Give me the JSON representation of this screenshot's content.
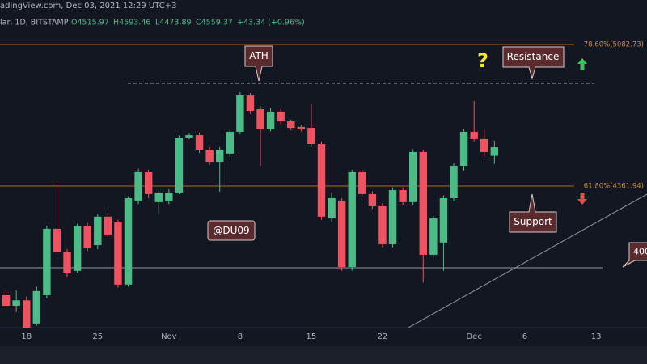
{
  "chart_data": {
    "type": "candlestick",
    "header": {
      "source": "adingView.com, Dec 03, 2021 12:29 UTC+3",
      "symbol": "lar, 1D, BITSTAMP",
      "open": "O4515.97",
      "high": "H4593.46",
      "low": "L4473.89",
      "close": "C4559.37",
      "change": "+43.34 (+0.96%)"
    },
    "x": [
      "Oct 16",
      "Oct 17",
      "Oct 18",
      "Oct 19",
      "Oct 20",
      "Oct 21",
      "Oct 22",
      "Oct 23",
      "Oct 24",
      "Oct 25",
      "Oct 26",
      "Oct 27",
      "Oct 28",
      "Oct 29",
      "Oct 30",
      "Oct 31",
      "Nov 1",
      "Nov 2",
      "Nov 3",
      "Nov 4",
      "Nov 5",
      "Nov 6",
      "Nov 7",
      "Nov 8",
      "Nov 9",
      "Nov 10",
      "Nov 11",
      "Nov 12",
      "Nov 13",
      "Nov 14",
      "Nov 15",
      "Nov 16",
      "Nov 17",
      "Nov 18",
      "Nov 19",
      "Nov 20",
      "Nov 21",
      "Nov 22",
      "Nov 23",
      "Nov 24",
      "Nov 25",
      "Nov 26",
      "Nov 27",
      "Nov 28",
      "Nov 29",
      "Nov 30",
      "Dec 1",
      "Dec 2",
      "Dec 3"
    ],
    "open": [
      3806,
      3752,
      3780,
      3662,
      3806,
      4144,
      4024,
      3930,
      4156,
      4061,
      4206,
      4177,
      3860,
      4288,
      4432,
      4280,
      4288,
      4329,
      4609,
      4621,
      4547,
      4485,
      4527,
      4638,
      4823,
      4753,
      4650,
      4741,
      4691,
      4663,
      4658,
      4576,
      4197,
      4288,
      3950,
      4432,
      4321,
      4259,
      4065,
      4341,
      4280,
      4535,
      4012,
      4074,
      4300,
      4465,
      4638,
      4601,
      4515.97
    ],
    "high": [
      3830,
      3830,
      3800,
      3850,
      4160,
      4383,
      4040,
      4170,
      4175,
      4220,
      4225,
      4190,
      4310,
      4450,
      4445,
      4340,
      4345,
      4620,
      4630,
      4635,
      4560,
      4560,
      4650,
      4840,
      4835,
      4770,
      4760,
      4755,
      4700,
      4675,
      4782,
      4590,
      4330,
      4300,
      4445,
      4445,
      4335,
      4275,
      4355,
      4355,
      4550,
      4545,
      4210,
      4315,
      4480,
      4650,
      4794,
      4650,
      4593.46
    ],
    "low": [
      3730,
      3720,
      3641,
      3650,
      3790,
      4010,
      3900,
      3920,
      4030,
      4040,
      4100,
      3845,
      3850,
      4270,
      4300,
      4220,
      4270,
      4320,
      4600,
      4530,
      4470,
      4333,
      4510,
      4625,
      4730,
      4465,
      4640,
      4675,
      4645,
      4640,
      4560,
      4190,
      4180,
      3930,
      3930,
      4310,
      4245,
      4050,
      4050,
      4265,
      4265,
      3870,
      4000,
      3930,
      4285,
      4440,
      4590,
      4510,
      4473.89
    ],
    "close": [
      3752,
      3780,
      3641,
      3827,
      4144,
      4024,
      3921,
      4156,
      4045,
      4206,
      4115,
      3860,
      4300,
      4432,
      4321,
      4329,
      4329,
      4609,
      4621,
      4547,
      4485,
      4547,
      4638,
      4823,
      4745,
      4650,
      4741,
      4691,
      4658,
      4650,
      4576,
      4206,
      4300,
      3950,
      4432,
      4321,
      4259,
      4065,
      4341,
      4280,
      4535,
      4012,
      4197,
      4300,
      4465,
      4638,
      4601,
      4535,
      4559.37
    ],
    "up_color": "#4cbb87",
    "down_color": "#ef5361",
    "xlim": [
      "Oct 15",
      "Dec 18"
    ],
    "ylim": [
      3641,
      5235
    ],
    "xticks": [
      {
        "value": "Oct 18",
        "label": "18"
      },
      {
        "value": "Oct 25",
        "label": "25"
      },
      {
        "value": "Nov 1",
        "label": "Nov"
      },
      {
        "value": "Nov 8",
        "label": "8"
      },
      {
        "value": "Nov 15",
        "label": "15"
      },
      {
        "value": "Nov 22",
        "label": "22"
      },
      {
        "value": "Dec 1",
        "label": "Dec"
      },
      {
        "value": "Dec 6",
        "label": "6"
      },
      {
        "value": "Dec 13",
        "label": "13"
      }
    ],
    "fib_levels": [
      {
        "value": 5082.73,
        "label": "78.60%(5082.73)"
      },
      {
        "value": 4361.94,
        "label": "61.80%(4361.94)"
      }
    ],
    "ath_level": 4885,
    "support_level": 3946,
    "annotations": {
      "ath": "ATH",
      "resistance": "Resistance",
      "support": "Support",
      "author": "@DU09",
      "question": "?",
      "price_tag": "400"
    }
  }
}
